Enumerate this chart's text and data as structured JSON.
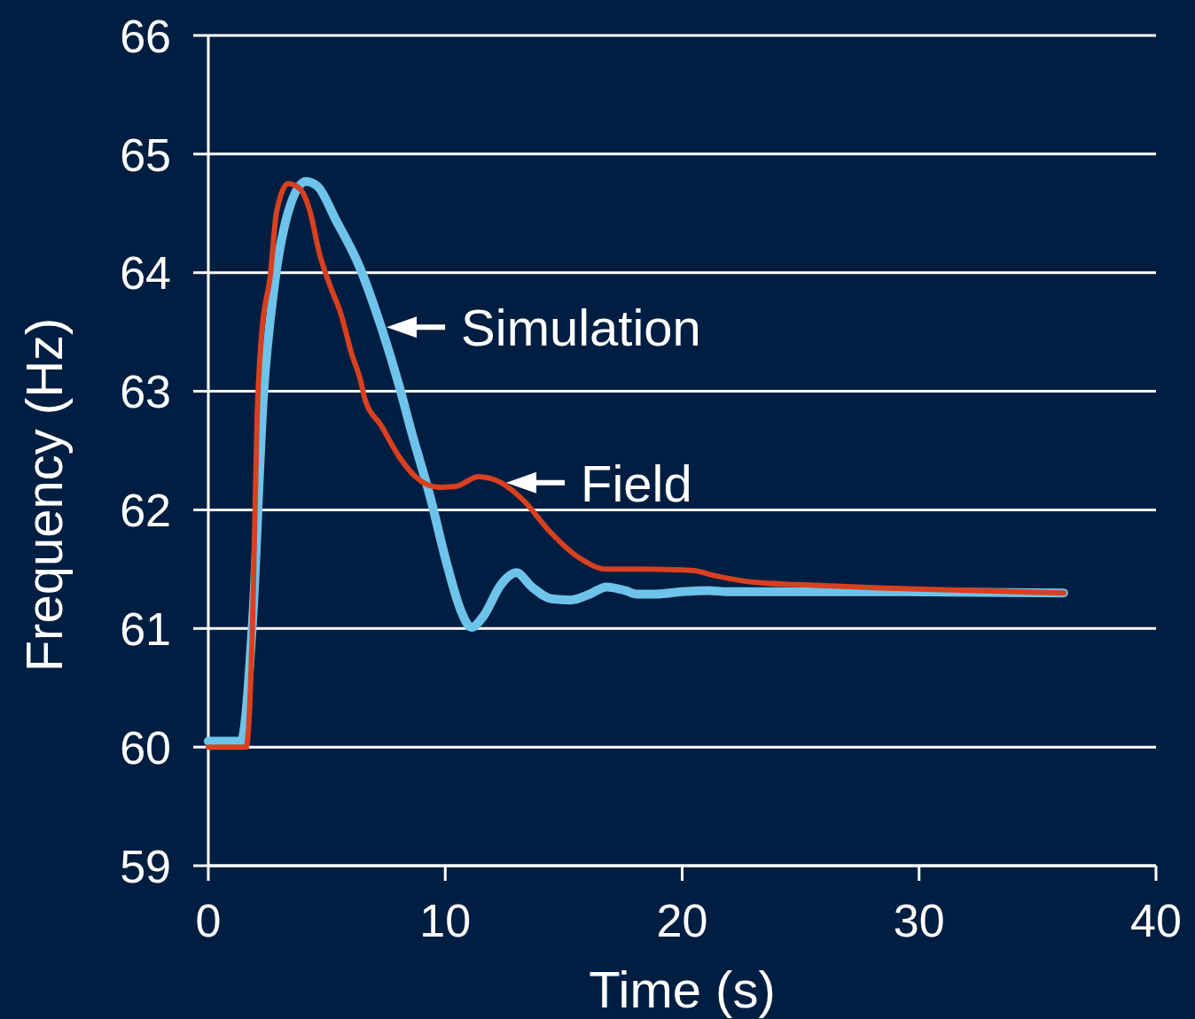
{
  "chart_data": {
    "type": "line",
    "xlabel": "Time (s)",
    "ylabel": "Frequency (Hz)",
    "xlim": [
      0,
      40
    ],
    "xticks": [
      0,
      10,
      20,
      30,
      40
    ],
    "ylim": [
      59,
      66
    ],
    "yticks": [
      59,
      60,
      61,
      62,
      63,
      64,
      65,
      66
    ],
    "grid": "y",
    "marker": "none",
    "line_style": "solid",
    "series": [
      {
        "name": "Simulation",
        "color": "#6ec3ea",
        "x": [
          0,
          1.38,
          1.87,
          2.32,
          2.8,
          3.37,
          4.12,
          4.6,
          5.42,
          6.36,
          7.3,
          8.05,
          8.6,
          9.35,
          10.1,
          10.66,
          11.1,
          11.6,
          12.35,
          13,
          13.66,
          14.48,
          15.3,
          16.1,
          16.8,
          17.6,
          18.07,
          18.9,
          20,
          21.1,
          21.9,
          28.6,
          36.1
        ],
        "values": [
          60.05,
          60.05,
          61.07,
          62.94,
          63.91,
          64.51,
          64.77,
          64.73,
          64.43,
          64.06,
          63.54,
          63.05,
          62.64,
          62.12,
          61.52,
          61.15,
          61.01,
          61.1,
          61.37,
          61.47,
          61.35,
          61.25,
          61.24,
          61.29,
          61.35,
          61.32,
          61.29,
          61.29,
          61.31,
          61.32,
          61.31,
          61.31,
          61.3
        ]
      },
      {
        "name": "Field",
        "color": "#d9401f",
        "x": [
          0,
          1.6,
          1.87,
          2.06,
          2.24,
          2.62,
          2.88,
          3.37,
          3.85,
          4.3,
          4.68,
          5.1,
          5.6,
          6.06,
          6.43,
          6.6,
          7.3,
          8.05,
          8.8,
          9.73,
          10.47,
          11.4,
          12.35,
          13.3,
          14.4,
          15.7,
          16.8,
          18.1,
          20.4,
          21.5,
          23,
          24.9,
          28.6,
          36.1
        ],
        "values": [
          60,
          60,
          61.07,
          62.79,
          63.46,
          63.98,
          64.51,
          64.75,
          64.71,
          64.51,
          64.17,
          63.91,
          63.65,
          63.31,
          63.09,
          62.94,
          62.71,
          62.45,
          62.27,
          62.19,
          62.2,
          62.28,
          62.23,
          62.08,
          61.82,
          61.59,
          61.5,
          61.5,
          61.49,
          61.44,
          61.39,
          61.37,
          61.34,
          61.3
        ]
      }
    ]
  }
}
